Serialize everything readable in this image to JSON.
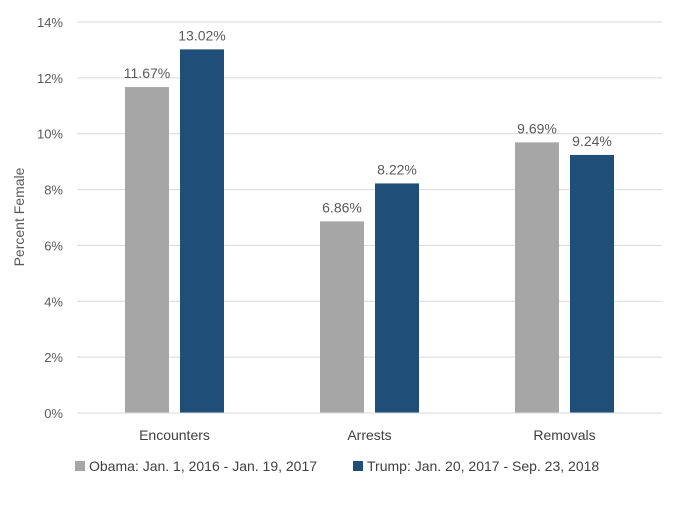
{
  "chart_data": {
    "type": "bar",
    "categories": [
      "Encounters",
      "Arrests",
      "Removals"
    ],
    "series": [
      {
        "name": "Obama: Jan. 1, 2016 - Jan. 19, 2017",
        "values": [
          11.67,
          6.86,
          9.69
        ],
        "labels": [
          "11.67%",
          "6.86%",
          "9.69%"
        ],
        "color": "#a6a6a6"
      },
      {
        "name": "Trump: Jan. 20, 2017 - Sep. 23, 2018",
        "values": [
          13.02,
          8.22,
          9.24
        ],
        "labels": [
          "13.02%",
          "8.22%",
          "9.24%"
        ],
        "color": "#1f4e79"
      }
    ],
    "ylabel": "Percent Female",
    "xlabel": "",
    "ylim": [
      0,
      14
    ],
    "yticks": [
      0,
      2,
      4,
      6,
      8,
      10,
      12,
      14
    ],
    "ytick_labels": [
      "0%",
      "2%",
      "4%",
      "6%",
      "8%",
      "10%",
      "12%",
      "14%"
    ],
    "grid": true,
    "legend_position": "bottom"
  }
}
